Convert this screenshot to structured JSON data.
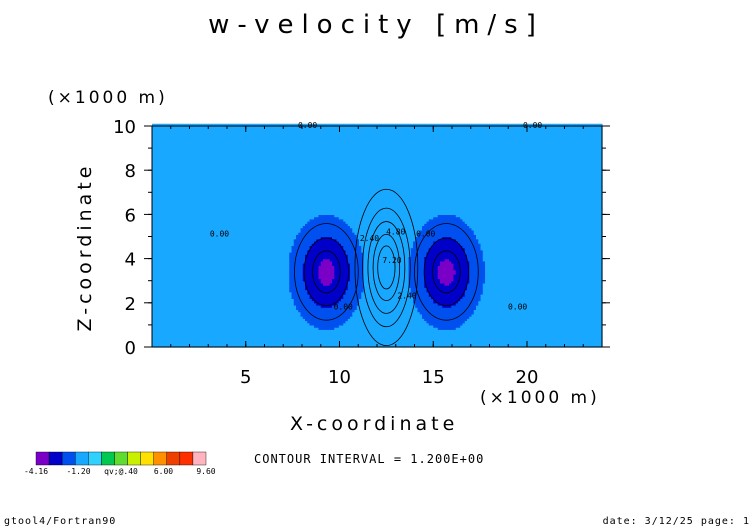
{
  "chart_data": {
    "type": "heatmap",
    "title": "w-velocity [m/s]",
    "xlabel": "X-coordinate",
    "ylabel": "Z-coordinate",
    "x_unit_label": "(×1000 m)",
    "y_unit_label": "(×1000 m)",
    "xlim": [
      0,
      24
    ],
    "ylim": [
      0,
      10
    ],
    "x_ticks": [
      "5",
      "10",
      "15",
      "20"
    ],
    "y_ticks": [
      "0",
      "2",
      "4",
      "6",
      "8",
      "10"
    ],
    "contour_interval_text": "CONTOUR INTERVAL = 1.200E+00",
    "contour_labels": [
      {
        "text": "0.00",
        "x": 8.3,
        "z": 9.9
      },
      {
        "text": "0.00",
        "x": 20.3,
        "z": 9.9
      },
      {
        "text": "0.00",
        "x": 3.6,
        "z": 5.0
      },
      {
        "text": "0.00",
        "x": 10.2,
        "z": 1.7
      },
      {
        "text": "0.00",
        "x": 14.6,
        "z": 5.0
      },
      {
        "text": "0.00",
        "x": 19.5,
        "z": 1.7
      },
      {
        "text": "2.40",
        "x": 11.6,
        "z": 4.8
      },
      {
        "text": "2.40",
        "x": 13.6,
        "z": 2.2
      },
      {
        "text": "4.80",
        "x": 13.0,
        "z": 5.1
      },
      {
        "text": "7.20",
        "x": 12.8,
        "z": 3.8
      }
    ],
    "field": {
      "background": 0.2,
      "cells": [
        {
          "name": "updraft",
          "cx": 12.5,
          "cz": 3.6,
          "rx": 1.8,
          "rz": 3.8,
          "amp": 9.4
        },
        {
          "name": "left downdraft",
          "cx": 9.3,
          "cz": 3.4,
          "rx": 2.1,
          "rz": 2.7,
          "amp": -4.4
        },
        {
          "name": "right downdraft",
          "cx": 15.7,
          "cz": 3.4,
          "rx": 2.1,
          "rz": 2.7,
          "amp": -4.4
        }
      ],
      "blue_zone_value": -1.0
    },
    "colorbar": {
      "levels": [
        -4.16,
        -2.96,
        -1.76,
        -0.56,
        0.64,
        1.84,
        3.04,
        4.24,
        5.44,
        6.64,
        7.84,
        9.04
      ],
      "colors": [
        "#7a00c8",
        "#0000c8",
        "#0050f0",
        "#18a8ff",
        "#30d0ff",
        "#00c850",
        "#60dc30",
        "#c8f000",
        "#ffe000",
        "#ff9000",
        "#f04000",
        "#ff3000",
        "#ffb4c0"
      ],
      "tick_labels": [
        "-4.16",
        "-1.20",
        "qv;@.40",
        "6.00",
        "9.60"
      ]
    }
  },
  "footer": {
    "left": "gtool4/Fortran90",
    "right": "date: 3/12/25 page: 1"
  },
  "colors": {
    "background_field": "#1fe8a0",
    "outline": "#000000"
  }
}
